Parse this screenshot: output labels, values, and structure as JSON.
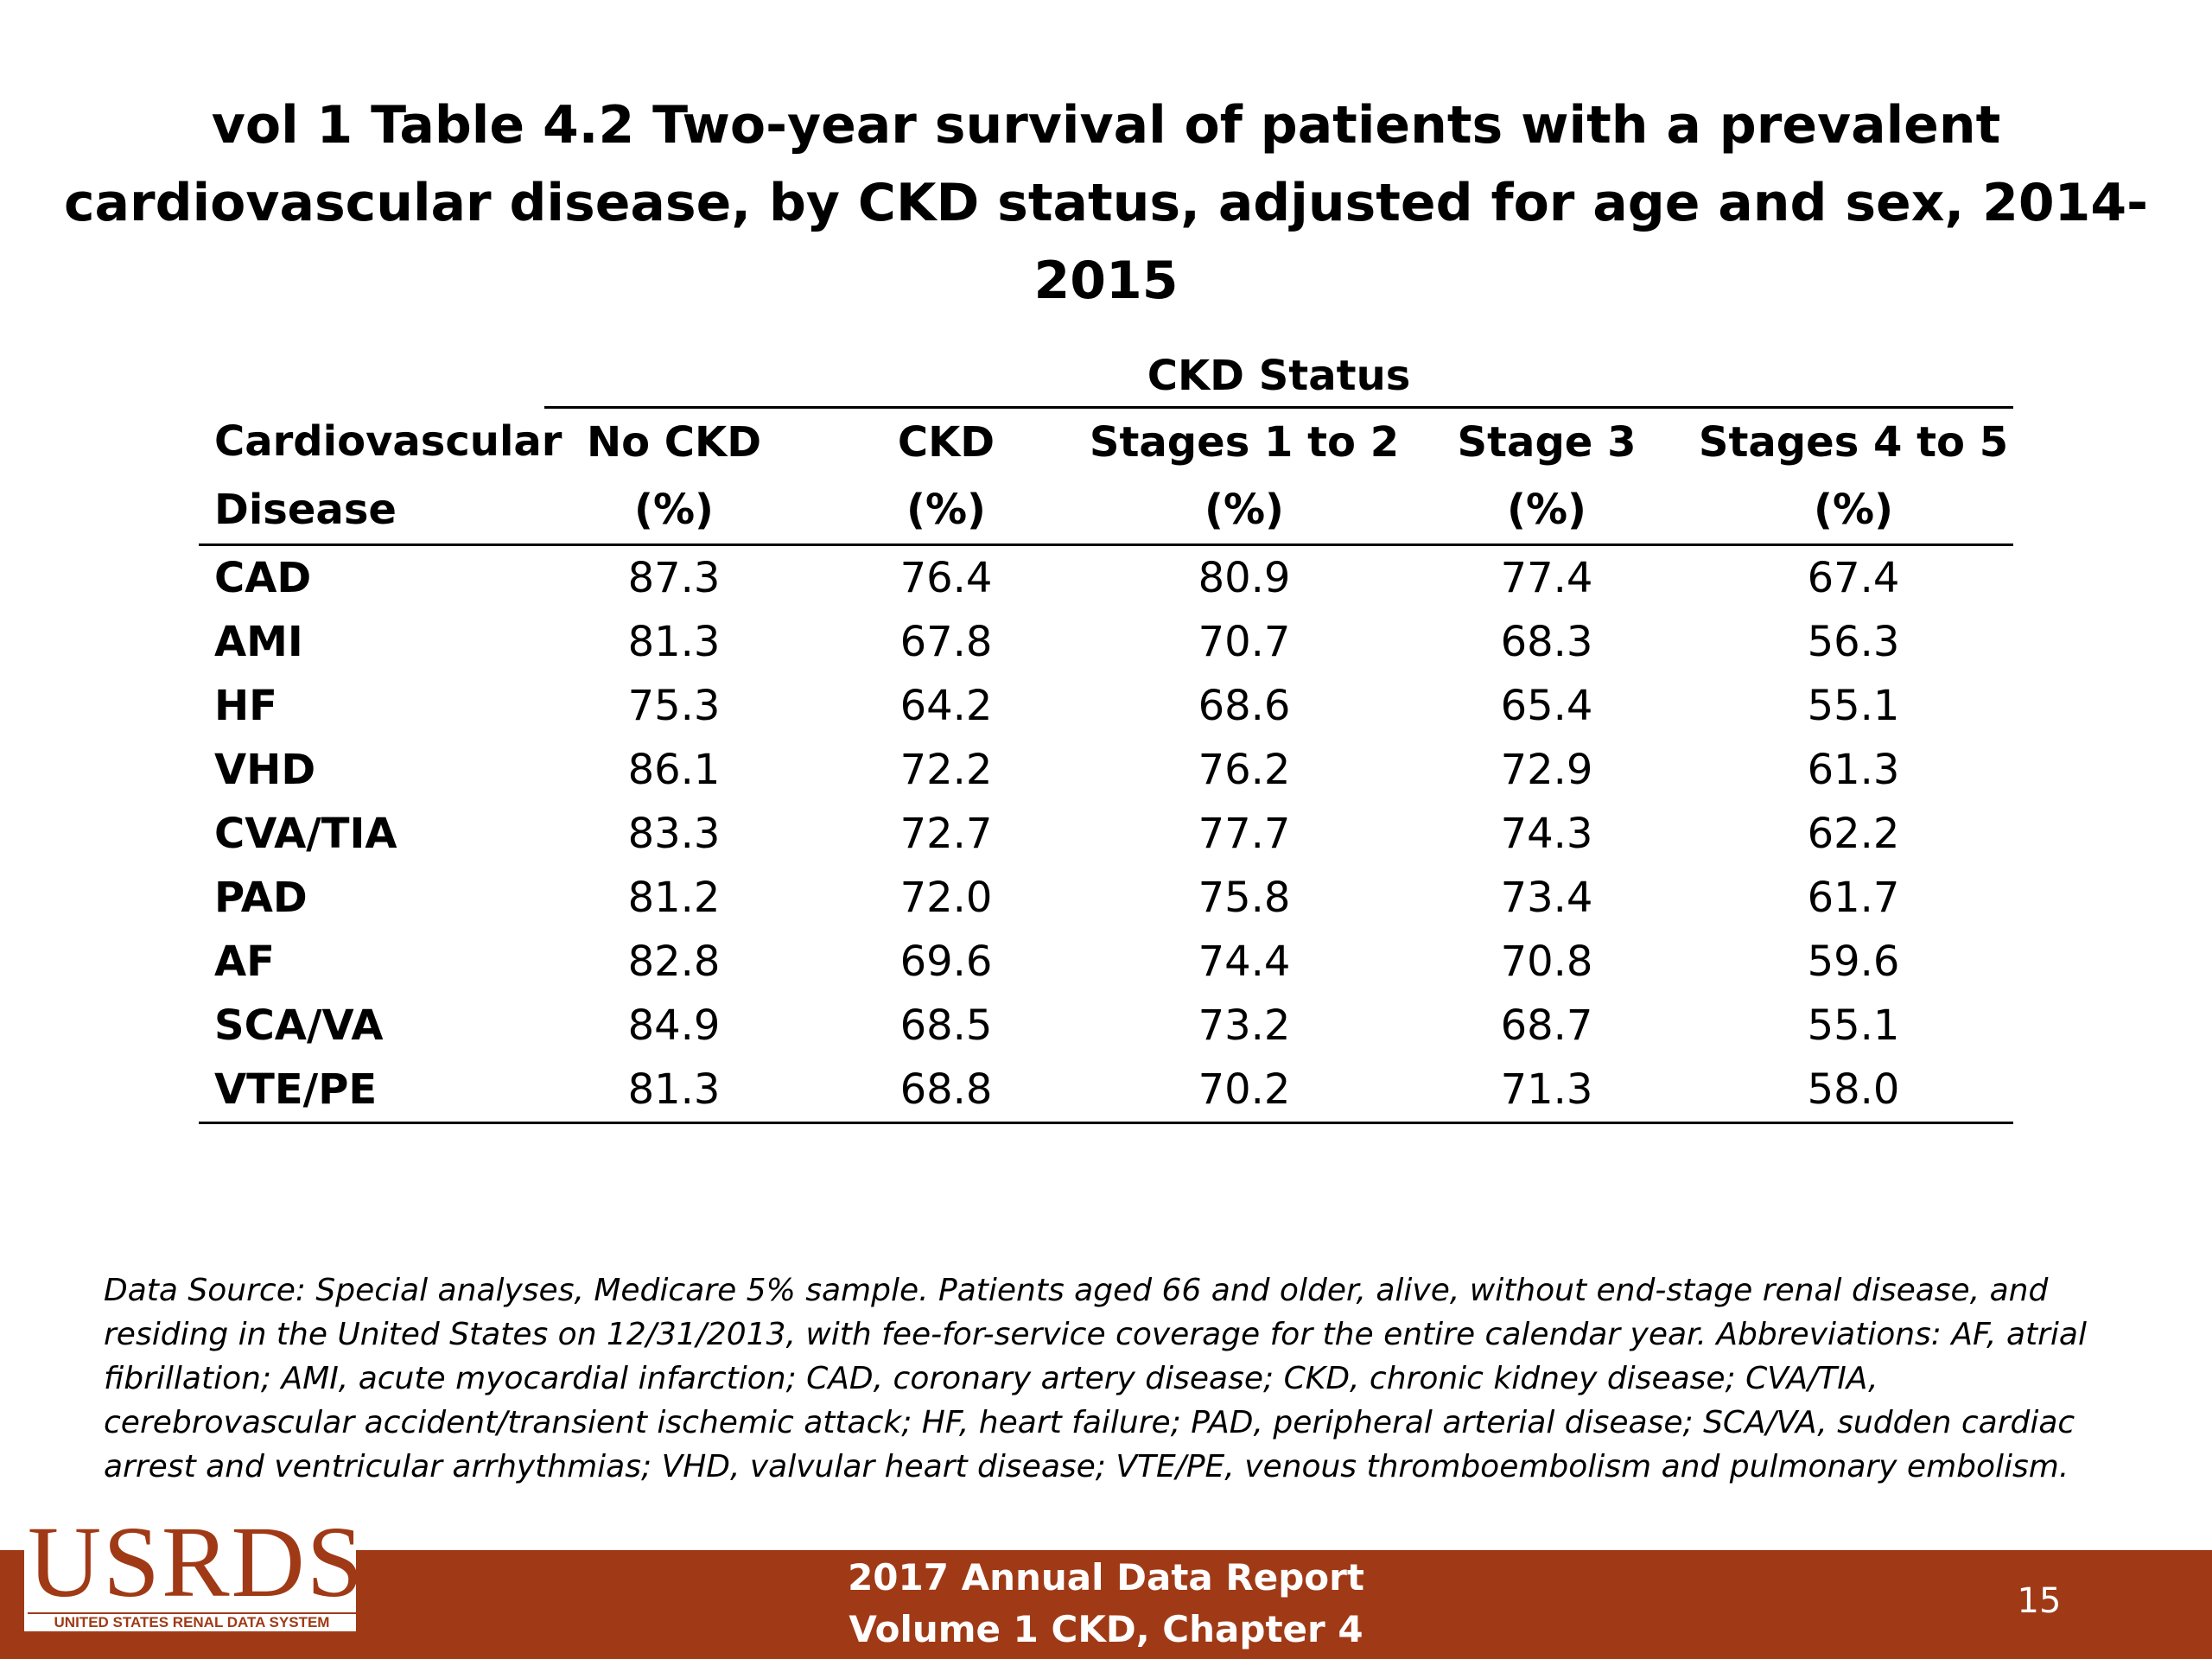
{
  "title": "vol 1 Table 4.2 Two-year survival of patients with a prevalent cardiovascular disease, by CKD status, adjusted for age and sex, 2014-2015",
  "table": {
    "group_header": "CKD Status",
    "columns": [
      {
        "line1": "Cardiovascular",
        "line2": "Disease"
      },
      {
        "line1": "No CKD",
        "line2": "(%)"
      },
      {
        "line1": "CKD",
        "line2": "(%)"
      },
      {
        "line1": "Stages 1 to 2",
        "line2": "(%)"
      },
      {
        "line1": "Stage 3",
        "line2": "(%)"
      },
      {
        "line1": "Stages 4 to 5",
        "line2": "(%)"
      }
    ],
    "rows": [
      [
        "CAD",
        "87.3",
        "76.4",
        "80.9",
        "77.4",
        "67.4"
      ],
      [
        "AMI",
        "81.3",
        "67.8",
        "70.7",
        "68.3",
        "56.3"
      ],
      [
        "HF",
        "75.3",
        "64.2",
        "68.6",
        "65.4",
        "55.1"
      ],
      [
        "VHD",
        "86.1",
        "72.2",
        "76.2",
        "72.9",
        "61.3"
      ],
      [
        "CVA/TIA",
        "83.3",
        "72.7",
        "77.7",
        "74.3",
        "62.2"
      ],
      [
        "PAD",
        "81.2",
        "72.0",
        "75.8",
        "73.4",
        "61.7"
      ],
      [
        "AF",
        "82.8",
        "69.6",
        "74.4",
        "70.8",
        "59.6"
      ],
      [
        "SCA/VA",
        "84.9",
        "68.5",
        "73.2",
        "68.7",
        "55.1"
      ],
      [
        "VTE/PE",
        "81.3",
        "68.8",
        "70.2",
        "71.3",
        "58.0"
      ]
    ]
  },
  "footnote": "Data Source: Special analyses, Medicare 5% sample. Patients aged 66 and older, alive, without end-stage renal disease, and residing in the United States on 12/31/2013, with fee-for-service coverage for the entire calendar year. Abbreviations: AF, atrial fibrillation; AMI, acute myocardial infarction; CAD, coronary artery disease; CKD, chronic kidney disease; CVA/TIA, cerebrovascular accident/transient ischemic attack; HF, heart failure; PAD, peripheral arterial disease; SCA/VA, sudden cardiac arrest and ventricular arrhythmias; VHD, valvular heart disease; VTE/PE, venous thromboembolism and pulmonary embolism.",
  "footer": {
    "line1": "2017 Annual Data Report",
    "line2": "Volume 1 CKD, Chapter 4",
    "page_number": "15"
  },
  "logo": {
    "wordmark": "USRDS",
    "subtitle": "UNITED STATES RENAL DATA SYSTEM"
  },
  "colors": {
    "footer_bar": "#a03a16",
    "logo": "#a03a16",
    "text": "#000000"
  }
}
